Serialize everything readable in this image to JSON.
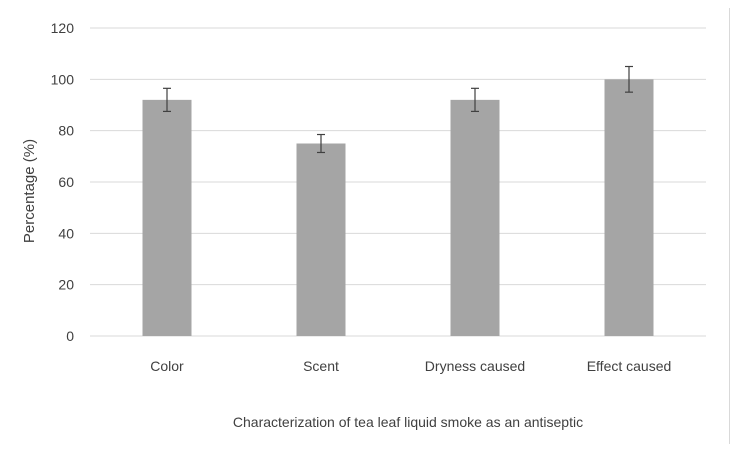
{
  "chart_data": {
    "type": "bar",
    "title": "",
    "xlabel": "Characterization of tea leaf liquid smoke as an antiseptic",
    "ylabel": "Percentage (%)",
    "ylim": [
      0,
      120
    ],
    "yticks": [
      0,
      20,
      40,
      60,
      80,
      100,
      120
    ],
    "grid": true,
    "legend": "none",
    "categories": [
      "Color",
      "Scent",
      "Dryness caused",
      "Effect caused"
    ],
    "values": [
      92,
      75,
      92,
      100
    ],
    "error_bars": [
      4.5,
      3.5,
      4.5,
      5
    ],
    "bar_color": "#a5a5a5",
    "grid_color": "#d9d9d9",
    "error_color": "#404040"
  }
}
